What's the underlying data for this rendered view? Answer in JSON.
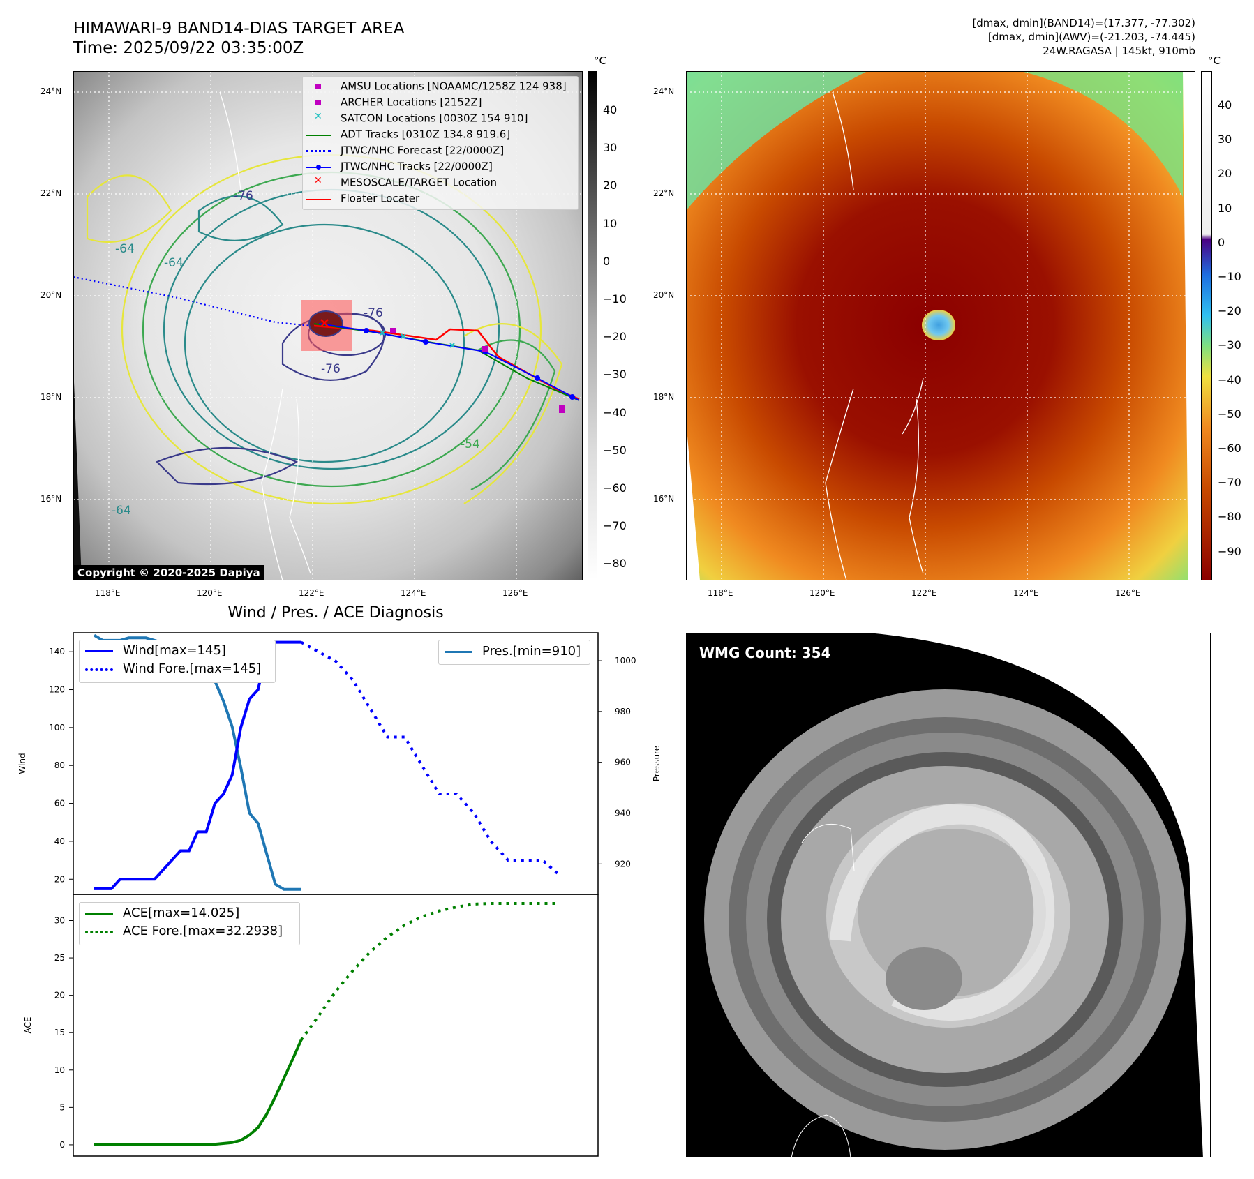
{
  "header": {
    "title": "HIMAWARI-9 BAND14-DIAS TARGET AREA",
    "time": "Time: 2025/09/22 03:35:00Z",
    "dmax_band14": "[dmax, dmin](BAND14)=(17.377, -77.302)",
    "dmax_awv": "[dmax, dmin](AWV)=(-21.203, -74.445)",
    "storm": "24W.RAGASA | 145kt, 910mb"
  },
  "map": {
    "lat_labels": [
      "24°N",
      "22°N",
      "20°N",
      "18°N",
      "16°N"
    ],
    "lon_labels": [
      "118°E",
      "120°E",
      "122°E",
      "124°E",
      "126°E"
    ],
    "copyright": "Copyright © 2020-2025 Dapiya",
    "contour_labels": [
      "-76",
      "-76",
      "-76",
      "-64",
      "-64",
      "-64",
      "-54"
    ],
    "legend": [
      {
        "label": "AMSU Locations [NOAAMC/1258Z 124 938]",
        "marker": "square",
        "color": "#c000c0"
      },
      {
        "label": "ARCHER Locations [2152Z]",
        "marker": "square",
        "color": "#c000c0"
      },
      {
        "label": "SATCON Locations [0030Z 154 910]",
        "marker": "x",
        "color": "#20c0c0"
      },
      {
        "label": "ADT Tracks [0310Z 134.8 919.6]",
        "marker": "line",
        "color": "#008000"
      },
      {
        "label": "JTWC/NHC Forecast [22/0000Z]",
        "marker": "dotted",
        "color": "#0000ff"
      },
      {
        "label": "JTWC/NHC Tracks [22/0000Z]",
        "marker": "line-dot",
        "color": "#0000ff"
      },
      {
        "label": "MESOSCALE/TARGET Location",
        "marker": "x",
        "color": "#ff0000"
      },
      {
        "label": "Floater Locater",
        "marker": "line",
        "color": "#ff0000"
      }
    ]
  },
  "colorbar_gray": {
    "unit": "°C",
    "ticks": [
      "40",
      "30",
      "20",
      "10",
      "0",
      "−10",
      "−20",
      "−30",
      "−40",
      "−50",
      "−60",
      "−70",
      "−80"
    ]
  },
  "colorbar_awv": {
    "unit": "°C",
    "ticks": [
      "40",
      "30",
      "20",
      "10",
      "0",
      "−10",
      "−20",
      "−30",
      "−40",
      "−50",
      "−60",
      "−70",
      "−80",
      "−90"
    ]
  },
  "wmg": {
    "label": "WMG Count: 354"
  },
  "chart_data": [
    {
      "type": "line",
      "title": "Wind / Pres. / ACE Diagnosis",
      "ylabel": "Wind",
      "y2label": "Pressure",
      "ylim": [
        12,
        150
      ],
      "y2lim": [
        908,
        1011
      ],
      "yticks": [
        20,
        40,
        60,
        80,
        100,
        120,
        140
      ],
      "y2ticks": [
        920,
        940,
        960,
        980,
        1000
      ],
      "series": [
        {
          "name": "Wind[max=145]",
          "color": "#0000ff",
          "style": "solid",
          "axis": "left",
          "x": [
            0,
            1,
            2,
            3,
            4,
            5,
            6,
            7,
            8,
            9,
            10,
            11,
            12,
            13,
            14,
            15,
            16,
            17,
            18,
            19,
            20,
            21,
            22,
            23,
            24
          ],
          "values": [
            15,
            15,
            15,
            20,
            20,
            20,
            20,
            20,
            25,
            30,
            35,
            35,
            45,
            45,
            60,
            65,
            75,
            100,
            115,
            120,
            140,
            145,
            145,
            145,
            145
          ]
        },
        {
          "name": "Wind Fore.[max=145]",
          "color": "#0000ff",
          "style": "dotted",
          "axis": "left",
          "x": [
            24,
            26,
            28,
            30,
            32,
            34,
            36,
            38,
            40,
            42,
            44,
            46,
            48,
            50,
            52,
            54
          ],
          "values": [
            145,
            140,
            135,
            125,
            110,
            95,
            95,
            80,
            65,
            65,
            55,
            40,
            30,
            30,
            30,
            22
          ]
        },
        {
          "name": "Pres.[min=910]",
          "color": "#1f77b4",
          "style": "solid",
          "axis": "right",
          "x": [
            0,
            1,
            2,
            3,
            4,
            5,
            6,
            7,
            8,
            9,
            10,
            11,
            12,
            13,
            14,
            15,
            16,
            17,
            18,
            19,
            20,
            21,
            22,
            23,
            24
          ],
          "values": [
            1010,
            1008,
            1008,
            1008,
            1009,
            1009,
            1009,
            1008,
            1007,
            1007,
            1005,
            1004,
            1002,
            998,
            992,
            984,
            974,
            958,
            940,
            936,
            924,
            912,
            910,
            910,
            910
          ]
        }
      ]
    },
    {
      "type": "line",
      "ylabel": "ACE",
      "ylim": [
        -1.5,
        33.5
      ],
      "yticks": [
        0,
        5,
        10,
        15,
        20,
        25,
        30
      ],
      "series": [
        {
          "name": "ACE[max=14.025]",
          "color": "#008000",
          "style": "solid",
          "x": [
            0,
            2,
            4,
            6,
            8,
            10,
            12,
            14,
            16,
            17,
            18,
            19,
            20,
            21,
            22,
            23,
            24
          ],
          "values": [
            0,
            0,
            0,
            0,
            0,
            0,
            0.02,
            0.08,
            0.3,
            0.6,
            1.3,
            2.3,
            4.1,
            6.4,
            8.9,
            11.4,
            14.025
          ]
        },
        {
          "name": "ACE Fore.[max=32.2938]",
          "color": "#008000",
          "style": "dotted",
          "x": [
            24,
            26,
            28,
            30,
            32,
            34,
            36,
            38,
            40,
            42,
            44,
            46,
            48,
            50,
            52,
            54
          ],
          "values": [
            14.025,
            17.2,
            20.5,
            23.3,
            25.8,
            27.8,
            29.4,
            30.5,
            31.3,
            31.8,
            32.2,
            32.29,
            32.29,
            32.29,
            32.29,
            32.29
          ]
        }
      ]
    }
  ]
}
